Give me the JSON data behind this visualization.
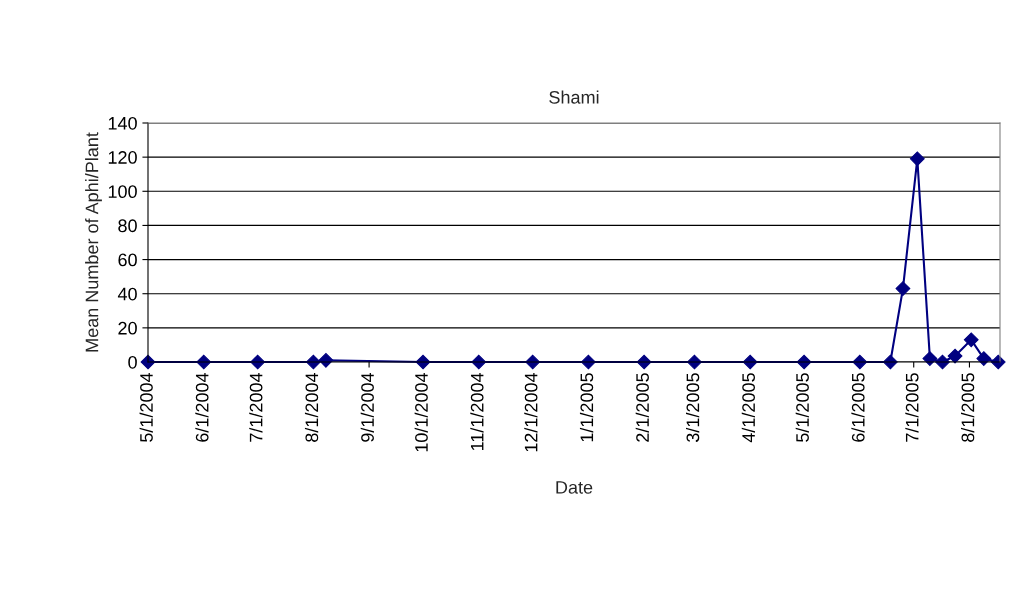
{
  "chart_data": {
    "type": "line",
    "title": "Shami",
    "xlabel": "Date",
    "ylabel": "Mean Number of Aphi/Plant",
    "x": [
      "2004-05-01",
      "2004-06-01",
      "2004-07-01",
      "2004-08-01",
      "2004-08-08",
      "2004-10-01",
      "2004-11-01",
      "2004-12-01",
      "2005-01-01",
      "2005-02-01",
      "2005-03-01",
      "2005-04-01",
      "2005-05-01",
      "2005-06-01",
      "2005-06-18",
      "2005-06-25",
      "2005-07-03",
      "2005-07-10",
      "2005-07-17",
      "2005-07-24",
      "2005-08-02",
      "2005-08-09",
      "2005-08-17"
    ],
    "series": [
      {
        "color": "#000080",
        "values": [
          0,
          0,
          0,
          0,
          1,
          0,
          0,
          0,
          0,
          0,
          0,
          0,
          0,
          0,
          0,
          43,
          119,
          2,
          0,
          3.5,
          13,
          2,
          0
        ]
      }
    ],
    "xlim": [
      "2004-05-01",
      "2005-08-18"
    ],
    "xticks": [
      {
        "value": "2004-05-01",
        "label": "5/1/2004"
      },
      {
        "value": "2004-06-01",
        "label": "6/1/2004"
      },
      {
        "value": "2004-07-01",
        "label": "7/1/2004"
      },
      {
        "value": "2004-08-01",
        "label": "8/1/2004"
      },
      {
        "value": "2004-09-01",
        "label": "9/1/2004"
      },
      {
        "value": "2004-10-01",
        "label": "10/1/2004"
      },
      {
        "value": "2004-11-01",
        "label": "11/1/2004"
      },
      {
        "value": "2004-12-01",
        "label": "12/1/2004"
      },
      {
        "value": "2005-01-01",
        "label": "1/1/2005"
      },
      {
        "value": "2005-02-01",
        "label": "2/1/2005"
      },
      {
        "value": "2005-03-01",
        "label": "3/1/2005"
      },
      {
        "value": "2005-04-01",
        "label": "4/1/2005"
      },
      {
        "value": "2005-05-01",
        "label": "5/1/2005"
      },
      {
        "value": "2005-06-01",
        "label": "6/1/2005"
      },
      {
        "value": "2005-07-01",
        "label": "7/1/2005"
      },
      {
        "value": "2005-08-01",
        "label": "8/1/2005"
      }
    ],
    "ylim": [
      0,
      140
    ],
    "yticks": [
      0,
      20,
      40,
      60,
      80,
      100,
      120,
      140
    ],
    "grid": "y",
    "marker": "diamond",
    "line_style": "solid"
  }
}
